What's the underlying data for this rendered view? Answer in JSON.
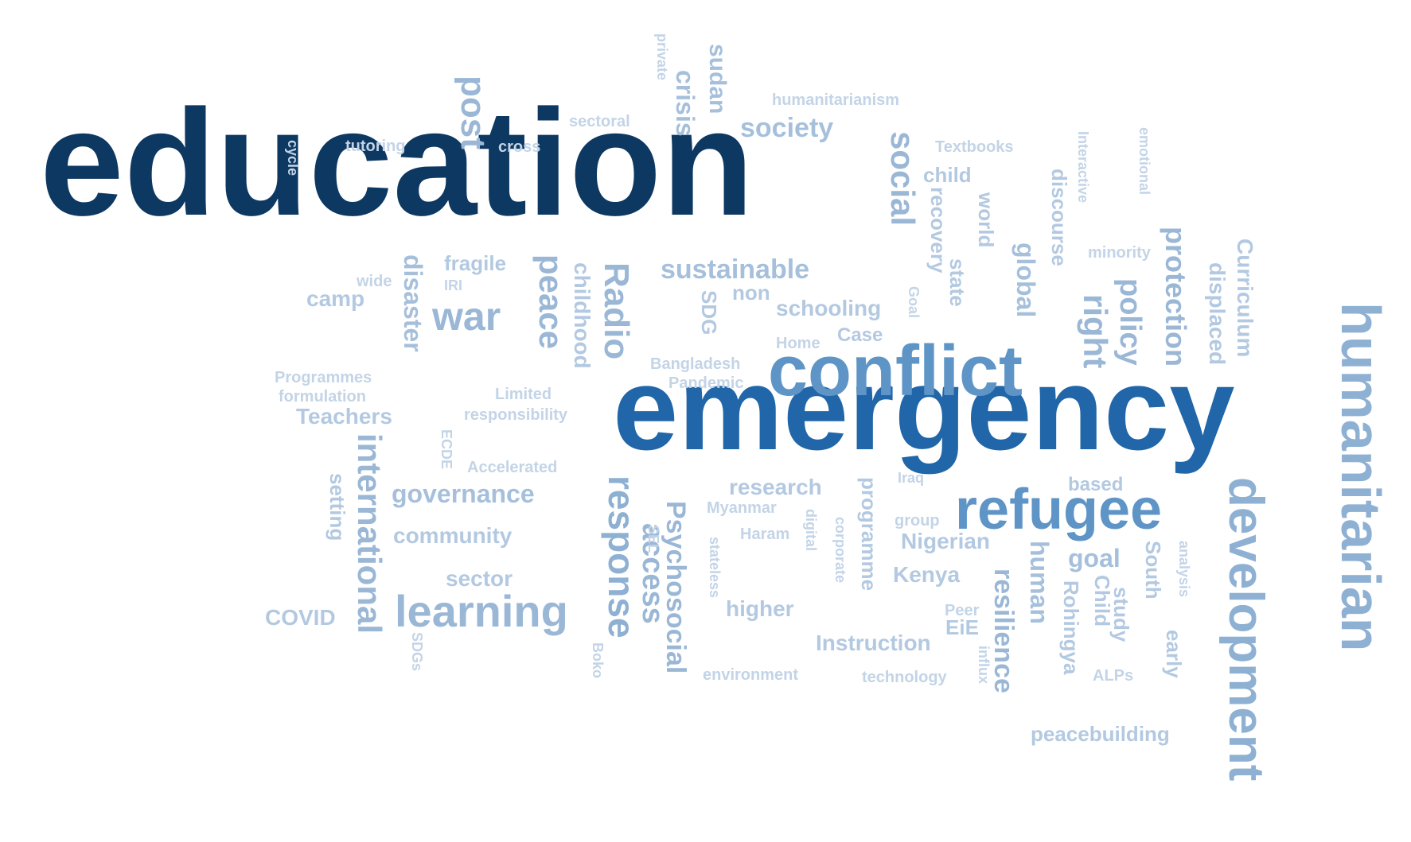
{
  "word_cloud": {
    "words": [
      {
        "text": "education",
        "weight": 10,
        "color": "#0d3862"
      },
      {
        "text": "emergency",
        "weight": 9,
        "color": "#2166a8"
      },
      {
        "text": "conflict",
        "weight": 7,
        "color": "#5f95c6"
      },
      {
        "text": "humanitarian",
        "weight": 6,
        "color": "#8eb0d2"
      },
      {
        "text": "development",
        "weight": 6,
        "color": "#8eb0d2"
      },
      {
        "text": "refugee",
        "weight": 6,
        "color": "#5f95c6"
      },
      {
        "text": "learning",
        "weight": 5,
        "color": "#9ab7d6"
      },
      {
        "text": "response",
        "weight": 5,
        "color": "#8eb0d2"
      },
      {
        "text": "war",
        "weight": 4,
        "color": "#9ab7d6"
      },
      {
        "text": "Radio",
        "weight": 4,
        "color": "#9ab7d6"
      },
      {
        "text": "peace",
        "weight": 4,
        "color": "#9ab7d6"
      },
      {
        "text": "post",
        "weight": 4,
        "color": "#9ab7d6"
      },
      {
        "text": "international",
        "weight": 4,
        "color": "#9ab7d6"
      },
      {
        "text": "access",
        "weight": 4,
        "color": "#9ab7d6"
      },
      {
        "text": "Psychosocial",
        "weight": 4,
        "color": "#9ab7d6"
      },
      {
        "text": "social",
        "weight": 4,
        "color": "#9ab7d6"
      },
      {
        "text": "right",
        "weight": 4,
        "color": "#9ab7d6"
      },
      {
        "text": "policy",
        "weight": 3,
        "color": "#9ab7d6"
      },
      {
        "text": "protection",
        "weight": 3,
        "color": "#9ab7d6"
      },
      {
        "text": "resilience",
        "weight": 3,
        "color": "#9ab7d6"
      },
      {
        "text": "sustainable",
        "weight": 3,
        "color": "#a6c0dc"
      },
      {
        "text": "society",
        "weight": 3,
        "color": "#a6c0dc"
      },
      {
        "text": "crisis",
        "weight": 3,
        "color": "#a6c0dc"
      },
      {
        "text": "sudan",
        "weight": 3,
        "color": "#a6c0dc"
      },
      {
        "text": "disaster",
        "weight": 3,
        "color": "#a6c0dc"
      },
      {
        "text": "governance",
        "weight": 3,
        "color": "#a6c0dc"
      },
      {
        "text": "global",
        "weight": 3,
        "color": "#a6c0dc"
      },
      {
        "text": "human",
        "weight": 3,
        "color": "#a6c0dc"
      },
      {
        "text": "goal",
        "weight": 3,
        "color": "#a6c0dc"
      },
      {
        "text": "schooling",
        "weight": 2,
        "color": "#b3c9e1"
      },
      {
        "text": "community",
        "weight": 2,
        "color": "#b3c9e1"
      },
      {
        "text": "sector",
        "weight": 2,
        "color": "#b3c9e1"
      },
      {
        "text": "research",
        "weight": 2,
        "color": "#b3c9e1"
      },
      {
        "text": "higher",
        "weight": 2,
        "color": "#b3c9e1"
      },
      {
        "text": "Instruction",
        "weight": 2,
        "color": "#b3c9e1"
      },
      {
        "text": "Kenya",
        "weight": 2,
        "color": "#b3c9e1"
      },
      {
        "text": "Nigerian",
        "weight": 2,
        "color": "#b3c9e1"
      },
      {
        "text": "Teachers",
        "weight": 2,
        "color": "#b3c9e1"
      },
      {
        "text": "fragile",
        "weight": 2,
        "color": "#b3c9e1"
      },
      {
        "text": "camp",
        "weight": 2,
        "color": "#b3c9e1"
      },
      {
        "text": "COVID",
        "weight": 2,
        "color": "#b3c9e1"
      },
      {
        "text": "peacebuilding",
        "weight": 2,
        "color": "#b3c9e1"
      },
      {
        "text": "child",
        "weight": 2,
        "color": "#b3c9e1"
      },
      {
        "text": "non",
        "weight": 2,
        "color": "#b3c9e1"
      },
      {
        "text": "Case",
        "weight": 2,
        "color": "#b3c9e1"
      },
      {
        "text": "based",
        "weight": 2,
        "color": "#b3c9e1"
      },
      {
        "text": "displaced",
        "weight": 2,
        "color": "#b3c9e1"
      },
      {
        "text": "Curriculum",
        "weight": 2,
        "color": "#b3c9e1"
      },
      {
        "text": "childhood",
        "weight": 2,
        "color": "#b3c9e1"
      },
      {
        "text": "programme",
        "weight": 2,
        "color": "#b3c9e1"
      },
      {
        "text": "setting",
        "weight": 2,
        "color": "#b3c9e1"
      },
      {
        "text": "SDG",
        "weight": 2,
        "color": "#b3c9e1"
      },
      {
        "text": "recovery",
        "weight": 2,
        "color": "#b3c9e1"
      },
      {
        "text": "state",
        "weight": 2,
        "color": "#b3c9e1"
      },
      {
        "text": "world",
        "weight": 2,
        "color": "#b3c9e1"
      },
      {
        "text": "discourse",
        "weight": 2,
        "color": "#b3c9e1"
      },
      {
        "text": "Rohingya",
        "weight": 2,
        "color": "#b3c9e1"
      },
      {
        "text": "Child",
        "weight": 2,
        "color": "#b3c9e1"
      },
      {
        "text": "study",
        "weight": 2,
        "color": "#b3c9e1"
      },
      {
        "text": "South",
        "weight": 2,
        "color": "#b3c9e1"
      },
      {
        "text": "early",
        "weight": 2,
        "color": "#b3c9e1"
      },
      {
        "text": "EiE",
        "weight": 2,
        "color": "#b3c9e1"
      },
      {
        "text": "humanitarianism",
        "weight": 1,
        "color": "#c3d4e7"
      },
      {
        "text": "sectoral",
        "weight": 1,
        "color": "#c3d4e7"
      },
      {
        "text": "tutoring",
        "weight": 1,
        "color": "#c3d4e7"
      },
      {
        "text": "cross",
        "weight": 1,
        "color": "#c3d4e7"
      },
      {
        "text": "Textbooks",
        "weight": 1,
        "color": "#c3d4e7"
      },
      {
        "text": "minority",
        "weight": 1,
        "color": "#c3d4e7"
      },
      {
        "text": "wide",
        "weight": 1,
        "color": "#c3d4e7"
      },
      {
        "text": "IRI",
        "weight": 1,
        "color": "#c3d4e7"
      },
      {
        "text": "Home",
        "weight": 1,
        "color": "#c3d4e7"
      },
      {
        "text": "Bangladesh",
        "weight": 1,
        "color": "#c3d4e7"
      },
      {
        "text": "Pandemic",
        "weight": 1,
        "color": "#c3d4e7"
      },
      {
        "text": "Programmes",
        "weight": 1,
        "color": "#c3d4e7"
      },
      {
        "text": "formulation",
        "weight": 1,
        "color": "#c3d4e7"
      },
      {
        "text": "Limited",
        "weight": 1,
        "color": "#c3d4e7"
      },
      {
        "text": "responsibility",
        "weight": 1,
        "color": "#c3d4e7"
      },
      {
        "text": "Accelerated",
        "weight": 1,
        "color": "#c3d4e7"
      },
      {
        "text": "Iraq",
        "weight": 1,
        "color": "#c3d4e7"
      },
      {
        "text": "Myanmar",
        "weight": 1,
        "color": "#c3d4e7"
      },
      {
        "text": "Haram",
        "weight": 1,
        "color": "#c3d4e7"
      },
      {
        "text": "group",
        "weight": 1,
        "color": "#c3d4e7"
      },
      {
        "text": "Peer",
        "weight": 1,
        "color": "#c3d4e7"
      },
      {
        "text": "environment",
        "weight": 1,
        "color": "#c3d4e7"
      },
      {
        "text": "technology",
        "weight": 1,
        "color": "#c3d4e7"
      },
      {
        "text": "ALPs",
        "weight": 1,
        "color": "#c3d4e7"
      },
      {
        "text": "private",
        "weight": 1,
        "color": "#c3d4e7"
      },
      {
        "text": "cycle",
        "weight": 1,
        "color": "#c3d4e7"
      },
      {
        "text": "Interactive",
        "weight": 1,
        "color": "#c3d4e7"
      },
      {
        "text": "emotional",
        "weight": 1,
        "color": "#c3d4e7"
      },
      {
        "text": "Goal",
        "weight": 1,
        "color": "#c3d4e7"
      },
      {
        "text": "ECDE",
        "weight": 1,
        "color": "#c3d4e7"
      },
      {
        "text": "SEL",
        "weight": 1,
        "color": "#c3d4e7"
      },
      {
        "text": "digital",
        "weight": 1,
        "color": "#c3d4e7"
      },
      {
        "text": "corporate",
        "weight": 1,
        "color": "#c3d4e7"
      },
      {
        "text": "stateless",
        "weight": 1,
        "color": "#c3d4e7"
      },
      {
        "text": "SDGs",
        "weight": 1,
        "color": "#c3d4e7"
      },
      {
        "text": "Boko",
        "weight": 1,
        "color": "#c3d4e7"
      },
      {
        "text": "influx",
        "weight": 1,
        "color": "#c3d4e7"
      },
      {
        "text": "analysis",
        "weight": 1,
        "color": "#c3d4e7"
      }
    ]
  }
}
